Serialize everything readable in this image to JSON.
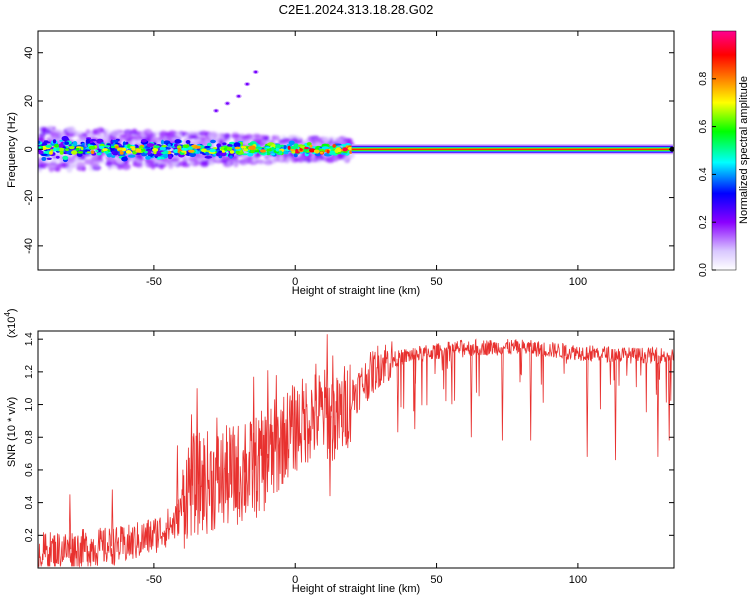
{
  "page": {
    "title": "C2E1.2024.313.18.28.G02"
  },
  "chart_data": [
    {
      "type": "heatmap",
      "title": "C2E1.2024.313.18.28.G02",
      "xlabel": "Height of straight line (km)",
      "ylabel": "Frequency (Hz)",
      "xlim": [
        -91,
        134
      ],
      "ylim": [
        -50,
        49
      ],
      "xticks": [
        -50,
        0,
        50,
        100
      ],
      "yticks": [
        -40,
        -20,
        0,
        20,
        40
      ],
      "colorbar": {
        "label": "Normalized spectral amplitude",
        "range": [
          0,
          1
        ],
        "ticks": [
          "0.0",
          "0.2",
          "0.4",
          "0.6",
          "0.8"
        ],
        "colors": [
          "#ffffff",
          "#d9c7ff",
          "#8a00ff",
          "#0000ff",
          "#00ffff",
          "#00ff00",
          "#ffff00",
          "#ff8000",
          "#ff0000",
          "#ff0090"
        ]
      },
      "features": {
        "main_line_frequency_hz": 0,
        "main_line_amplitude_from_km": 20,
        "scatter_region_km": [
          -91,
          20
        ],
        "scatter_spread_hz": [
          -8,
          8
        ],
        "rising_trail": [
          {
            "x": -28,
            "y": 16
          },
          {
            "x": -24,
            "y": 19
          },
          {
            "x": -20,
            "y": 22
          },
          {
            "x": -17,
            "y": 27
          },
          {
            "x": -14,
            "y": 32
          }
        ]
      }
    },
    {
      "type": "line",
      "xlabel": "Height of straight line (km)",
      "ylabel": "SNR (10 * v/v)",
      "yscale_label": "(x10",
      "yscale_exp": "4",
      "xlim": [
        -91,
        134
      ],
      "ylim": [
        0,
        1.45
      ],
      "xticks": [
        -50,
        0,
        50,
        100
      ],
      "yticks": [
        "0.2",
        "0.4",
        "0.6",
        "0.8",
        "1.0",
        "1.2",
        "1.4"
      ],
      "series": [
        {
          "color": "#e8312f",
          "envelope": [
            {
              "x": -91,
              "y": 0.1
            },
            {
              "x": -60,
              "y": 0.14
            },
            {
              "x": -50,
              "y": 0.2
            },
            {
              "x": -42,
              "y": 0.28
            },
            {
              "x": -38,
              "y": 0.5
            },
            {
              "x": -25,
              "y": 0.55
            },
            {
              "x": -15,
              "y": 0.6
            },
            {
              "x": -8,
              "y": 0.7
            },
            {
              "x": -3,
              "y": 0.82
            },
            {
              "x": 5,
              "y": 0.92
            },
            {
              "x": 10,
              "y": 0.95
            },
            {
              "x": 15,
              "y": 0.9
            },
            {
              "x": 20,
              "y": 1.05
            },
            {
              "x": 25,
              "y": 1.15
            },
            {
              "x": 30,
              "y": 1.25
            },
            {
              "x": 40,
              "y": 1.3
            },
            {
              "x": 60,
              "y": 1.35
            },
            {
              "x": 80,
              "y": 1.35
            },
            {
              "x": 100,
              "y": 1.32
            },
            {
              "x": 120,
              "y": 1.3
            },
            {
              "x": 134,
              "y": 1.3
            }
          ],
          "spikes": [
            {
              "x": -80,
              "y": 0.45
            },
            {
              "x": -65,
              "y": 0.48
            },
            {
              "x": -42,
              "y": 0.75
            },
            {
              "x": -37,
              "y": 0.94
            },
            {
              "x": -35,
              "y": 1.1
            },
            {
              "x": -28,
              "y": 0.92
            },
            {
              "x": -18,
              "y": 0.88
            },
            {
              "x": -15,
              "y": 1.17
            },
            {
              "x": -10,
              "y": 1.21
            },
            {
              "x": -7,
              "y": 1.18
            },
            {
              "x": 7,
              "y": 1.25
            },
            {
              "x": 11,
              "y": 1.43
            },
            {
              "x": 13,
              "y": 1.3
            }
          ],
          "dips": [
            {
              "x": 12,
              "y": 0.44
            },
            {
              "x": 36,
              "y": 0.83
            },
            {
              "x": 42,
              "y": 0.85
            },
            {
              "x": 62,
              "y": 0.8
            },
            {
              "x": 73,
              "y": 0.78
            },
            {
              "x": 83,
              "y": 0.78
            },
            {
              "x": 103,
              "y": 0.68
            },
            {
              "x": 113,
              "y": 0.66
            },
            {
              "x": 128,
              "y": 0.68
            },
            {
              "x": 132,
              "y": 0.78
            }
          ]
        }
      ]
    }
  ]
}
